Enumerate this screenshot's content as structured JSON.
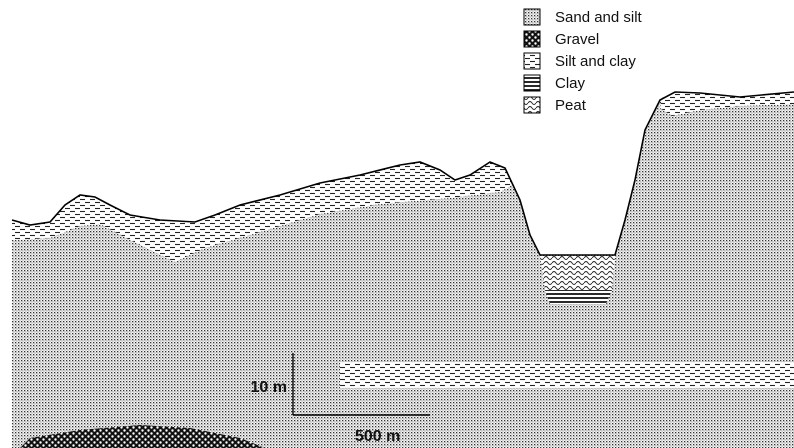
{
  "legend": {
    "items": [
      {
        "label": "Sand and silt"
      },
      {
        "label": "Gravel"
      },
      {
        "label": "Silt and clay"
      },
      {
        "label": "Clay"
      },
      {
        "label": "Peat"
      }
    ]
  },
  "scale": {
    "vertical": "10 m",
    "horizontal": "500 m"
  }
}
